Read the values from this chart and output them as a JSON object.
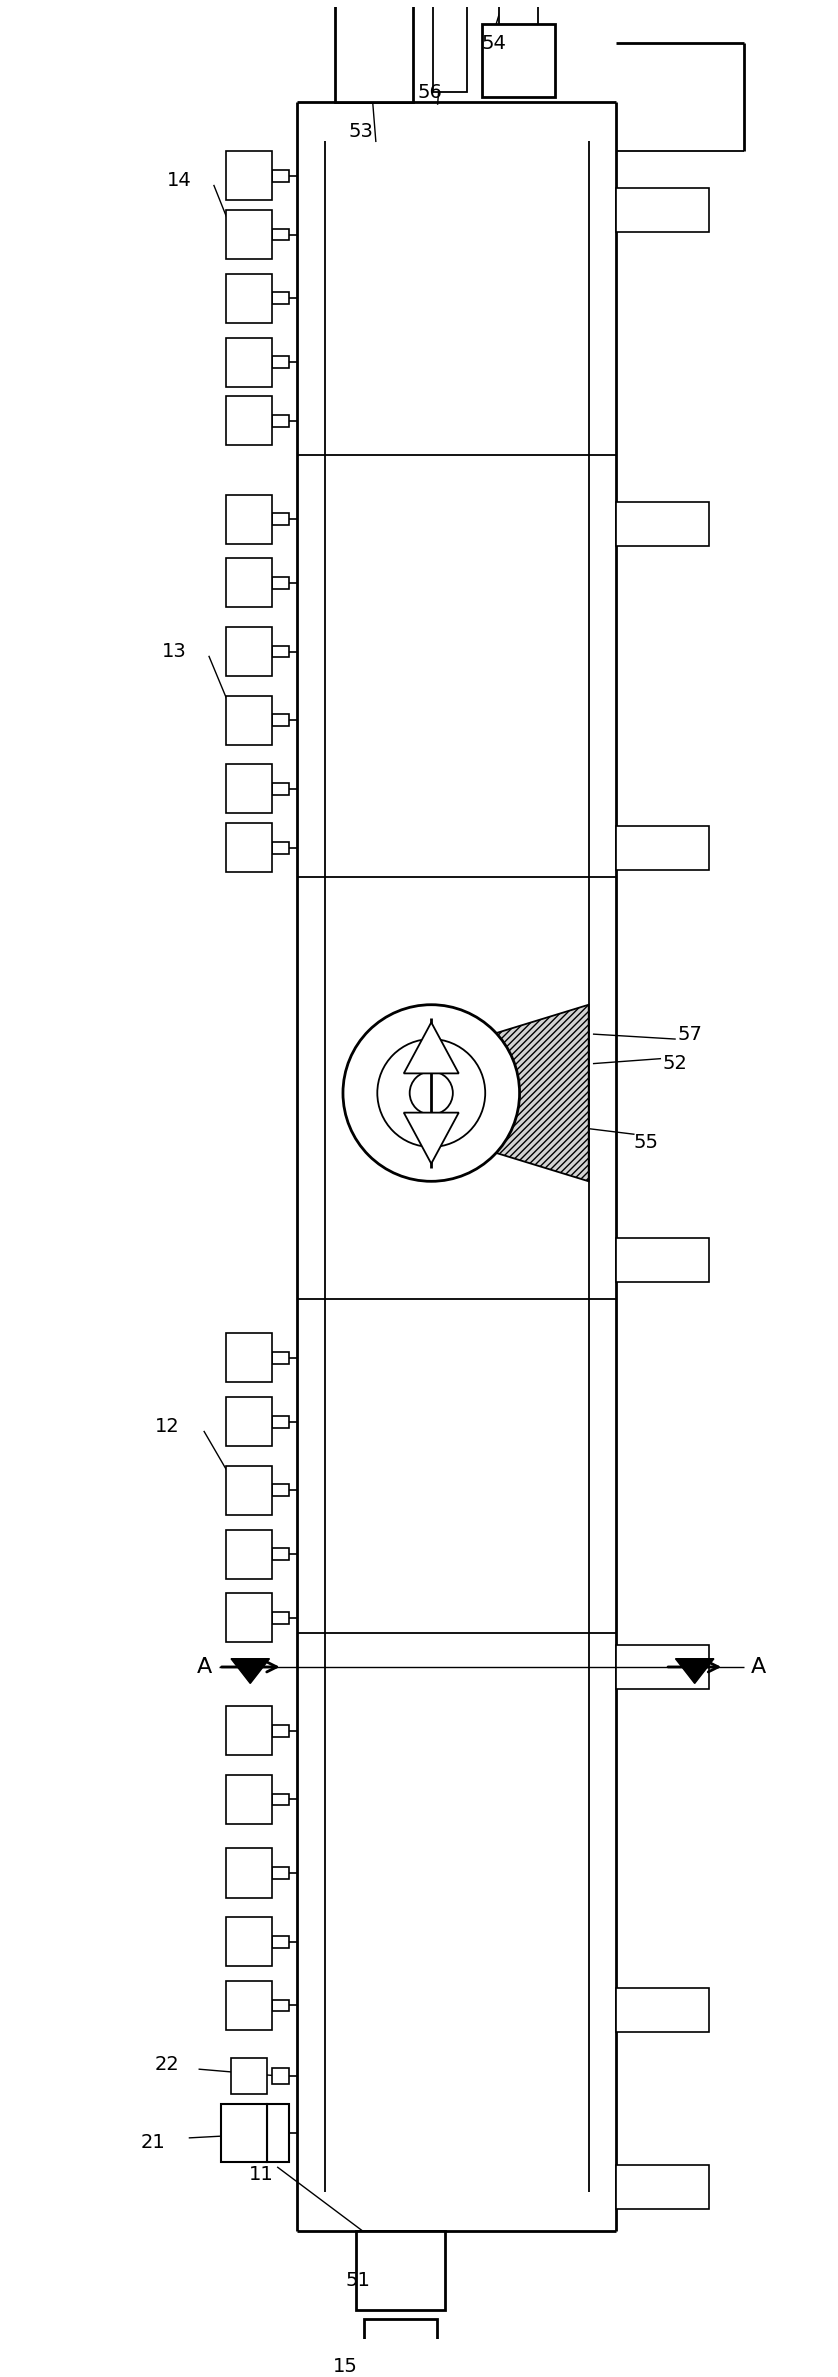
{
  "fig_width": 8.38,
  "fig_height": 23.77,
  "bg_color": "#ffffff",
  "line_color": "#000000",
  "lw_main": 2.0,
  "lw_inner": 1.3,
  "lw_elem": 1.2
}
